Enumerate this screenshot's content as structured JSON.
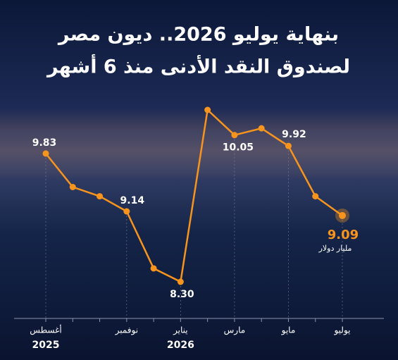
{
  "chart_data": {
    "type": "line",
    "title_lines": [
      "بنهاية يوليو 2026.. ديون مصر",
      "لصندوق النقد الأدنى منذ 6 أشهر"
    ],
    "categories": [
      "أغسطس",
      null,
      null,
      "نوفمبر",
      null,
      "يناير",
      null,
      "مارس",
      null,
      "مايو",
      null,
      "يوليو"
    ],
    "year_labels": [
      "2025",
      null,
      null,
      null,
      null,
      "2026",
      null,
      null,
      null,
      null,
      null,
      null
    ],
    "values": [
      9.83,
      9.43,
      9.32,
      9.14,
      8.46,
      8.3,
      10.35,
      10.05,
      10.13,
      9.92,
      9.32,
      9.09
    ],
    "value_labels": [
      "9.83",
      null,
      null,
      "9.14",
      null,
      "8.30",
      null,
      "10.05",
      null,
      "9.92",
      null,
      "9.09"
    ],
    "unit_label": "مليار دولار",
    "color": "#f7941d",
    "grid": true
  }
}
